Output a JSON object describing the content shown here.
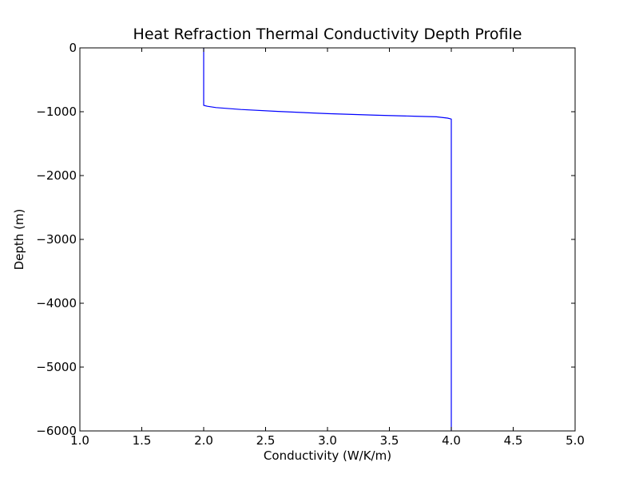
{
  "chart_data": {
    "type": "line",
    "title": "Heat Refraction Thermal Conductivity Depth Profile",
    "xlabel": "Conductivity (W/K/m)",
    "ylabel": "Depth (m)",
    "xlim": [
      1.0,
      5.0
    ],
    "ylim": [
      -6000,
      0
    ],
    "xticks": [
      "1.0",
      "1.5",
      "2.0",
      "2.5",
      "3.0",
      "3.5",
      "4.0",
      "4.5",
      "5.0"
    ],
    "yticks": [
      "0",
      "−1000",
      "−2000",
      "−3000",
      "−4000",
      "−5000",
      "−6000"
    ],
    "grid": false,
    "series": [
      {
        "color": "#0000ff",
        "x": [
          2.0,
          2.0,
          2.03,
          2.1,
          2.3,
          2.6,
          3.0,
          3.4,
          3.7,
          3.88,
          3.97,
          4.0,
          4.0
        ],
        "y": [
          0,
          -900,
          -915,
          -935,
          -965,
          -995,
          -1030,
          -1055,
          -1070,
          -1080,
          -1100,
          -1115,
          -6000
        ]
      }
    ]
  }
}
